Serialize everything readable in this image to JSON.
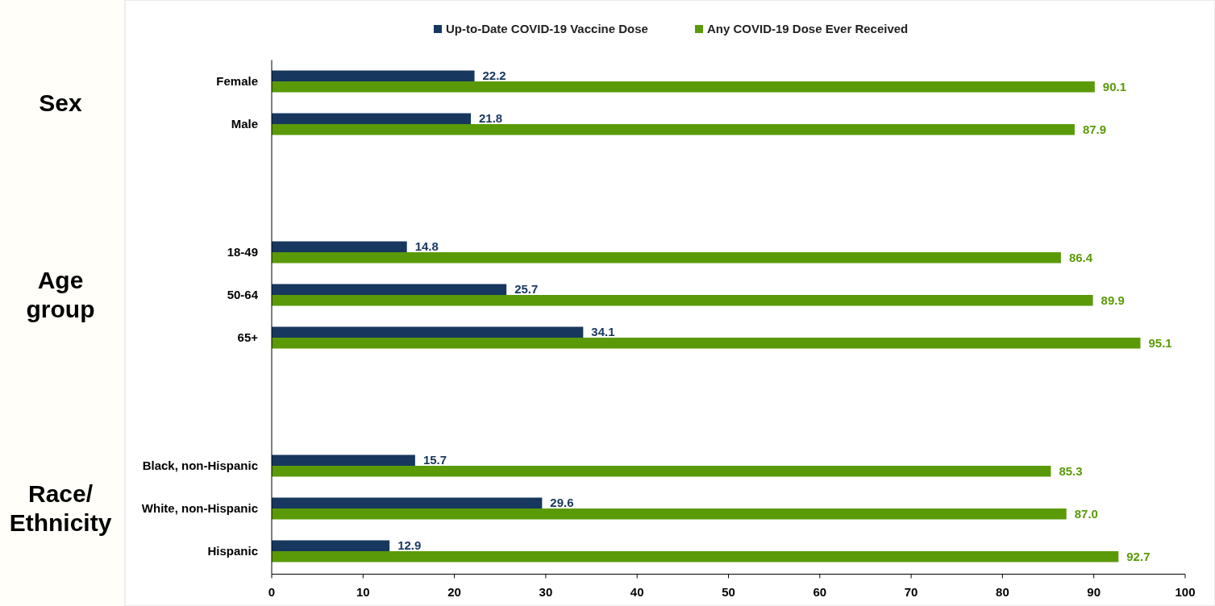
{
  "chart_data": {
    "type": "bar",
    "orientation": "horizontal",
    "categories": [
      "Female",
      "Male",
      null,
      null,
      "18-49",
      "50-64",
      "65+",
      null,
      null,
      "Black, non-Hispanic",
      "White, non-Hispanic",
      "Hispanic"
    ],
    "series": [
      {
        "name": "Up-to-Date COVID-19 Vaccine Dose",
        "color": "#17375e",
        "values": [
          22.2,
          21.8,
          null,
          null,
          14.8,
          25.7,
          34.1,
          null,
          null,
          15.7,
          29.6,
          12.9
        ],
        "value_labels": [
          "22.2",
          "21.8",
          null,
          null,
          "14.8",
          "25.7",
          "34.1",
          null,
          null,
          "15.7",
          "29.6",
          "12.9"
        ]
      },
      {
        "name": "Any COVID-19 Dose Ever Received",
        "color": "#5a9a08",
        "values": [
          90.1,
          87.9,
          null,
          null,
          86.4,
          89.9,
          95.1,
          null,
          null,
          85.3,
          87.0,
          92.7
        ],
        "value_labels": [
          "90.1",
          "87.9",
          null,
          null,
          "86.4",
          "89.9",
          "95.1",
          null,
          null,
          "85.3",
          "87.0",
          "92.7"
        ]
      }
    ],
    "xlim": [
      0,
      100
    ],
    "xticks": [
      0,
      10,
      20,
      30,
      40,
      50,
      60,
      70,
      80,
      90,
      100
    ],
    "legend": "top",
    "grid": false,
    "annotations": [
      "Sex",
      "Age group",
      "Race/ Ethnicity"
    ]
  }
}
